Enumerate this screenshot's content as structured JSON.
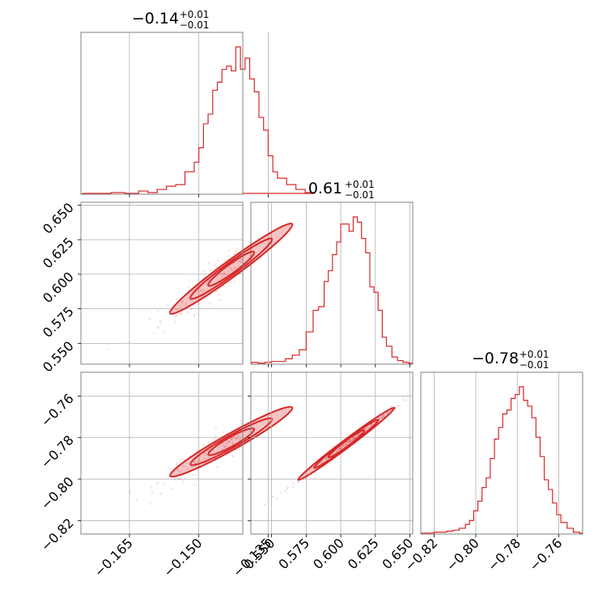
{
  "chart_data": {
    "type": "corner",
    "color": "#d62728",
    "params": [
      {
        "title_value": "−0.14",
        "title_plus": "+0.01",
        "title_minus": "−0.01",
        "range": [
          -0.1755,
          -0.1405
        ],
        "ticks": [
          -0.165,
          -0.15,
          -0.135
        ],
        "tick_labels": [
          "−0.165",
          "−0.150",
          "−0.135"
        ]
      },
      {
        "title_value": "0.61",
        "title_plus": "+0.01",
        "title_minus": "−0.01",
        "range": [
          0.535,
          0.652
        ],
        "ticks": [
          0.55,
          0.575,
          0.6,
          0.625,
          0.65
        ],
        "tick_labels": [
          "0.550",
          "0.575",
          "0.600",
          "0.625",
          "0.650"
        ]
      },
      {
        "title_value": "−0.78",
        "title_plus": "+0.01",
        "title_minus": "−0.01",
        "range": [
          -0.8265,
          -0.7485
        ],
        "ticks": [
          -0.82,
          -0.8,
          -0.78,
          -0.76
        ],
        "tick_labels": [
          "−0.82",
          "−0.80",
          "−0.78",
          "−0.76"
        ]
      }
    ],
    "histograms": [
      {
        "x": [
          -0.175,
          -0.172,
          -0.169,
          -0.166,
          -0.163,
          -0.161,
          -0.159,
          -0.157,
          -0.155,
          -0.153,
          -0.151,
          -0.15,
          -0.149,
          -0.148,
          -0.147,
          -0.146,
          -0.145,
          -0.144,
          -0.143,
          -0.142,
          -0.141,
          -0.14,
          -0.139,
          -0.138,
          -0.137,
          -0.136,
          -0.135,
          -0.134,
          -0.133,
          -0.131,
          -0.129,
          -0.127,
          -0.125
        ],
        "y": [
          0.5,
          0.5,
          1,
          0.5,
          2,
          1,
          3,
          5,
          6,
          14,
          20,
          29,
          44,
          50,
          65,
          70,
          78,
          80,
          77,
          92,
          78,
          85,
          72,
          64,
          48,
          40,
          24,
          14,
          10,
          6,
          3,
          1,
          0.5
        ]
      },
      {
        "x": [
          0.536,
          0.54,
          0.545,
          0.55,
          0.555,
          0.56,
          0.565,
          0.57,
          0.575,
          0.58,
          0.584,
          0.588,
          0.591,
          0.594,
          0.597,
          0.6,
          0.603,
          0.606,
          0.609,
          0.612,
          0.615,
          0.618,
          0.621,
          0.624,
          0.627,
          0.63,
          0.633,
          0.637,
          0.641,
          0.645,
          0.649
        ],
        "y": [
          1,
          0.5,
          1,
          1.5,
          1.5,
          3,
          5,
          8,
          18,
          30,
          32,
          46,
          52,
          61,
          68,
          78,
          78,
          74,
          82,
          79,
          70,
          62,
          43,
          40,
          30,
          15,
          10,
          4,
          2,
          1,
          0.5
        ]
      },
      {
        "x": [
          -0.826,
          -0.823,
          -0.82,
          -0.817,
          -0.814,
          -0.811,
          -0.808,
          -0.805,
          -0.803,
          -0.801,
          -0.799,
          -0.797,
          -0.795,
          -0.793,
          -0.791,
          -0.789,
          -0.787,
          -0.785,
          -0.783,
          -0.781,
          -0.779,
          -0.777,
          -0.775,
          -0.773,
          -0.771,
          -0.769,
          -0.767,
          -0.765,
          -0.763,
          -0.761,
          -0.759,
          -0.756,
          -0.753,
          -0.75
        ],
        "y": [
          0.5,
          0.5,
          1,
          1,
          1.5,
          2,
          3,
          5,
          7,
          12,
          17,
          24,
          29,
          39,
          49,
          55,
          62,
          64,
          70,
          72,
          76,
          69,
          66,
          60,
          50,
          40,
          28,
          23,
          16,
          10,
          6,
          3,
          1,
          0.5
        ]
      }
    ],
    "correlations": {
      "p0_p1": {
        "center": [
          -0.143,
          0.604
        ],
        "slope": 2.45,
        "thickness": 0.004
      },
      "p0_p2": {
        "center": [
          -0.143,
          -0.782
        ],
        "slope": 1.25,
        "thickness": 0.002
      },
      "p1_p2": {
        "center": [
          0.604,
          -0.783
        ],
        "slope": 0.5,
        "thickness": 0.0006
      }
    }
  }
}
